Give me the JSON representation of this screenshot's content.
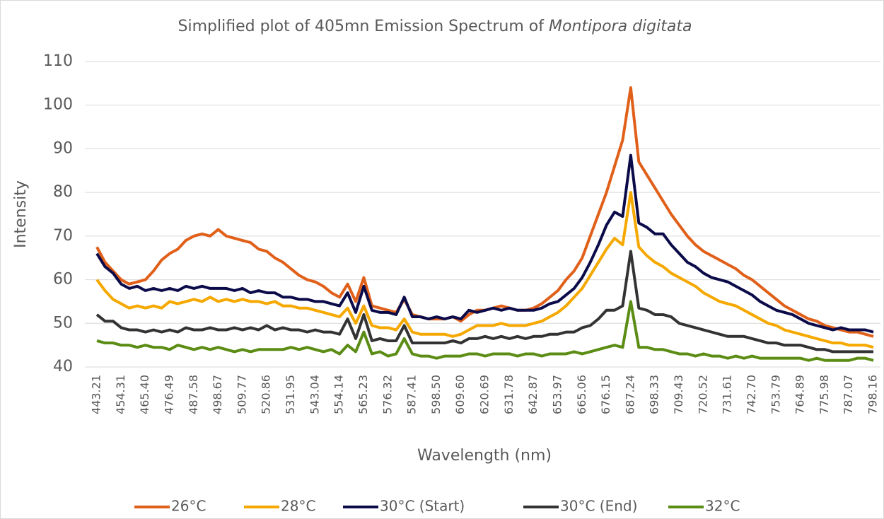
{
  "chart_data": {
    "type": "line",
    "title": {
      "text": "Simplified plot of 405mn Emission Spectrum of",
      "species": "Montipora digitata"
    },
    "x_label": "Wavelength (nm)",
    "y_label": "Intensity",
    "categories": [
      "443.21",
      null,
      null,
      "454.31",
      null,
      null,
      "465.40",
      null,
      null,
      "476.49",
      null,
      null,
      "487.58",
      null,
      null,
      "498.67",
      null,
      null,
      "509.77",
      null,
      null,
      "520.86",
      null,
      null,
      "531.95",
      null,
      null,
      "543.04",
      null,
      null,
      "554.14",
      null,
      null,
      "565.23",
      null,
      null,
      "576.32",
      null,
      null,
      "587.41",
      null,
      null,
      "598.50",
      null,
      null,
      "609.60",
      null,
      null,
      "620.69",
      null,
      null,
      "631.78",
      null,
      null,
      "642.87",
      null,
      null,
      "653.97",
      null,
      null,
      "665.06",
      null,
      null,
      "676.15",
      null,
      null,
      "687.24",
      null,
      null,
      "698.33",
      null,
      null,
      "709.43",
      null,
      null,
      "720.52",
      null,
      null,
      "731.61",
      null,
      null,
      "742.70",
      null,
      null,
      "753.79",
      null,
      null,
      "764.89",
      null,
      null,
      "775.98",
      null,
      null,
      "787.07",
      null,
      null,
      "798.16"
    ],
    "ylim": [
      40,
      110
    ],
    "yticks": [
      40,
      50,
      60,
      70,
      80,
      90,
      100,
      110
    ],
    "grid": true,
    "legend": "bottom",
    "series": [
      {
        "name": "26°C",
        "color": "#e0601a",
        "values": [
          67.5,
          64,
          62,
          60,
          59,
          59.5,
          60,
          62,
          64.5,
          66,
          67,
          69,
          70,
          70.5,
          70,
          71.5,
          70,
          69.5,
          69,
          68.5,
          67,
          66.5,
          65,
          64,
          62.5,
          61,
          60,
          59.5,
          58.5,
          57,
          56,
          59,
          55,
          60.5,
          54,
          53.5,
          53,
          52.5,
          55.5,
          52,
          51.5,
          51,
          51,
          51,
          51.5,
          50.5,
          52,
          53,
          53,
          53.5,
          54,
          53.5,
          53,
          53,
          53.5,
          54.5,
          56,
          57.5,
          60,
          62,
          65,
          70,
          75,
          80,
          86,
          92,
          104,
          87,
          84,
          81,
          78,
          75,
          72.5,
          70,
          68,
          66.5,
          65.5,
          64.5,
          63.5,
          62.5,
          61,
          60,
          58.5,
          57,
          55.5,
          54,
          53,
          52,
          51,
          50.5,
          49.5,
          49,
          48.5,
          48,
          48,
          47.5,
          47
        ]
      },
      {
        "name": "28°C",
        "color": "#f5a800",
        "values": [
          60,
          57.5,
          55.5,
          54.5,
          53.5,
          54,
          53.5,
          54,
          53.5,
          55,
          54.5,
          55,
          55.5,
          55,
          56,
          55,
          55.5,
          55,
          55.5,
          55,
          55,
          54.5,
          55,
          54,
          54,
          53.5,
          53.5,
          53,
          52.5,
          52,
          51.5,
          53.5,
          50,
          54,
          49.5,
          49,
          49,
          48.5,
          51,
          48,
          47.5,
          47.5,
          47.5,
          47.5,
          47,
          47.5,
          48.5,
          49.5,
          49.5,
          49.5,
          50,
          49.5,
          49.5,
          49.5,
          50,
          50.5,
          51.5,
          52.5,
          54,
          56,
          58,
          61,
          64,
          67,
          69.5,
          68,
          80,
          67.5,
          65.5,
          64,
          63,
          61.5,
          60.5,
          59.5,
          58.5,
          57,
          56,
          55,
          54.5,
          54,
          53,
          52,
          51,
          50,
          49.5,
          48.5,
          48,
          47.5,
          47,
          46.5,
          46,
          45.5,
          45.5,
          45,
          45,
          45,
          44.5
        ]
      },
      {
        "name": "30°C (Start)",
        "color": "#0b0b4a",
        "values": [
          66,
          63,
          61.5,
          59,
          58,
          58.5,
          57.5,
          58,
          57.5,
          58,
          57.5,
          58.5,
          58,
          58.5,
          58,
          58,
          58,
          57.5,
          58,
          57,
          57.5,
          57,
          57,
          56,
          56,
          55.5,
          55.5,
          55,
          55,
          54.5,
          54,
          57,
          52.5,
          58.5,
          53,
          52.5,
          52.5,
          52,
          56,
          51.5,
          51.5,
          51,
          51.5,
          51,
          51.5,
          51,
          53,
          52.5,
          53,
          53.5,
          53,
          53.5,
          53,
          53,
          53,
          53.5,
          54.5,
          55,
          56.5,
          58,
          60.5,
          64,
          68,
          72.5,
          75.5,
          74.5,
          88.5,
          73,
          72,
          70.5,
          70.5,
          68,
          66,
          64,
          63,
          61.5,
          60.5,
          60,
          59.5,
          58.5,
          57.5,
          56.5,
          55,
          54,
          53,
          52.5,
          52,
          51,
          50,
          49.5,
          49,
          48.5,
          49,
          48.5,
          48.5,
          48.5,
          48
        ]
      },
      {
        "name": "30°C (End)",
        "color": "#333333",
        "values": [
          52,
          50.5,
          50.5,
          49,
          48.5,
          48.5,
          48,
          48.5,
          48,
          48.5,
          48,
          49,
          48.5,
          48.5,
          49,
          48.5,
          48.5,
          49,
          48.5,
          49,
          48.5,
          49.5,
          48.5,
          49,
          48.5,
          48.5,
          48,
          48.5,
          48,
          48,
          47.5,
          51,
          46.5,
          52,
          46,
          46.5,
          46,
          46,
          49.5,
          45.5,
          45.5,
          45.5,
          45.5,
          45.5,
          46,
          45.5,
          46.5,
          46.5,
          47,
          46.5,
          47,
          46.5,
          47,
          46.5,
          47,
          47,
          47.5,
          47.5,
          48,
          48,
          49,
          49.5,
          51,
          53,
          53,
          54,
          66.5,
          53.5,
          53,
          52,
          52,
          51.5,
          50,
          49.5,
          49,
          48.5,
          48,
          47.5,
          47,
          47,
          47,
          46.5,
          46,
          45.5,
          45.5,
          45,
          45,
          45,
          44.5,
          44,
          44,
          43.5,
          43.5,
          43.5,
          43.5,
          43.5,
          43.5
        ]
      },
      {
        "name": "32°C",
        "color": "#5b8c14",
        "values": [
          46,
          45.5,
          45.5,
          45,
          45,
          44.5,
          45,
          44.5,
          44.5,
          44,
          45,
          44.5,
          44,
          44.5,
          44,
          44.5,
          44,
          43.5,
          44,
          43.5,
          44,
          44,
          44,
          44,
          44.5,
          44,
          44.5,
          44,
          43.5,
          44,
          43,
          45,
          43.5,
          48,
          43,
          43.5,
          42.5,
          43,
          46.5,
          43,
          42.5,
          42.5,
          42,
          42.5,
          42.5,
          42.5,
          43,
          43,
          42.5,
          43,
          43,
          43,
          42.5,
          43,
          43,
          42.5,
          43,
          43,
          43,
          43.5,
          43,
          43.5,
          44,
          44.5,
          45,
          44.5,
          55,
          44.5,
          44.5,
          44,
          44,
          43.5,
          43,
          43,
          42.5,
          43,
          42.5,
          42.5,
          42,
          42.5,
          42,
          42.5,
          42,
          42,
          42,
          42,
          42,
          42,
          41.5,
          42,
          41.5,
          41.5,
          41.5,
          41.5,
          42,
          42,
          41.5
        ]
      }
    ]
  }
}
